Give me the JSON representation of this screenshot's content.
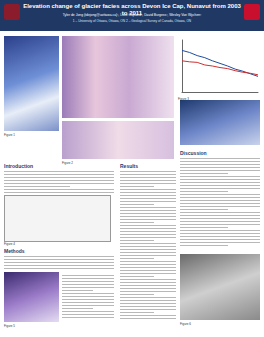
{
  "header": {
    "title": "Elevation change of glacier facies across Devon Ice Cap, Nunavut from 2003 to 2011",
    "authors": "Tyler de Jong (tdejong@uottawa.ca)¹, Luke Copland¹, David Burgess², Wesley Van Wychen¹",
    "affiliations": "1 – University of Ottawa, Ottawa, ON     2 – Geological Survey of Canada, Ottawa, ON"
  },
  "sections": [
    {
      "heading": "Introduction"
    },
    {
      "heading": "Methods"
    },
    {
      "heading": "Results"
    },
    {
      "heading": "Discussion"
    }
  ],
  "figures": [
    {
      "caption": "Figure 1"
    },
    {
      "caption": "Figure 2"
    },
    {
      "caption": "Figure 3"
    },
    {
      "caption": "Figure 4"
    },
    {
      "caption": "Figure 5"
    },
    {
      "caption": "Figure 6"
    }
  ],
  "chart_data": {
    "type": "line",
    "x": [
      0,
      1,
      2,
      3,
      4,
      5,
      6,
      7,
      8,
      9,
      10
    ],
    "xlim": [
      0,
      10
    ],
    "ylim": [
      0,
      100
    ],
    "tick_labels": false,
    "grid": false,
    "series": [
      {
        "color": "#1f4e9e",
        "values": [
          80,
          76,
          70,
          66,
          60,
          55,
          50,
          44,
          40,
          35,
          30
        ]
      },
      {
        "color": "#d03030",
        "values": [
          60,
          58,
          57,
          52,
          50,
          47,
          45,
          41,
          38,
          36,
          33
        ]
      }
    ]
  }
}
